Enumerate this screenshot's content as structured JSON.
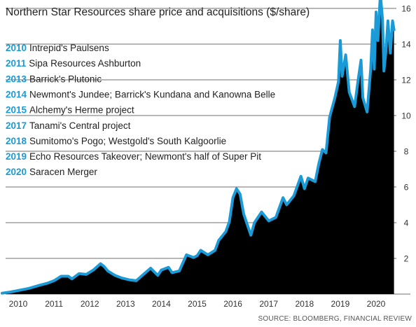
{
  "chart_data": {
    "type": "area",
    "title": "Northern Star Resources share price and acquisitions ($/share)",
    "source": "SOURCE: BLOOMBERG, FINANCIAL REVIEW",
    "xlabel": "",
    "ylabel": "",
    "x_range": [
      2009.55,
      2020.5
    ],
    "ylim": [
      0,
      17
    ],
    "y_ticks": [
      2,
      4,
      6,
      8,
      10,
      12,
      14,
      16
    ],
    "x_ticks": [
      2010,
      2011,
      2012,
      2013,
      2014,
      2015,
      2016,
      2017,
      2018,
      2019,
      2020
    ],
    "grid": true,
    "colors": {
      "line": "#1a9bd7",
      "fill": "#000000",
      "year": "#1a9bd7"
    },
    "series": [
      {
        "points": [
          [
            2009.55,
            0.05
          ],
          [
            2009.8,
            0.12
          ],
          [
            2010.0,
            0.2
          ],
          [
            2010.3,
            0.32
          ],
          [
            2010.6,
            0.5
          ],
          [
            2010.8,
            0.6
          ],
          [
            2011.0,
            0.75
          ],
          [
            2011.2,
            1.0
          ],
          [
            2011.4,
            1.0
          ],
          [
            2011.5,
            0.85
          ],
          [
            2011.7,
            1.15
          ],
          [
            2011.9,
            1.1
          ],
          [
            2012.1,
            1.35
          ],
          [
            2012.3,
            1.7
          ],
          [
            2012.4,
            1.55
          ],
          [
            2012.5,
            1.3
          ],
          [
            2012.7,
            1.05
          ],
          [
            2012.9,
            0.9
          ],
          [
            2013.1,
            0.8
          ],
          [
            2013.3,
            0.75
          ],
          [
            2013.5,
            1.1
          ],
          [
            2013.7,
            1.45
          ],
          [
            2013.9,
            1.05
          ],
          [
            2014.0,
            1.35
          ],
          [
            2014.2,
            1.5
          ],
          [
            2014.3,
            1.2
          ],
          [
            2014.5,
            1.3
          ],
          [
            2014.7,
            2.2
          ],
          [
            2014.9,
            2.05
          ],
          [
            2015.0,
            2.15
          ],
          [
            2015.1,
            2.45
          ],
          [
            2015.3,
            2.2
          ],
          [
            2015.5,
            2.45
          ],
          [
            2015.6,
            3.0
          ],
          [
            2015.8,
            3.5
          ],
          [
            2015.9,
            4.05
          ],
          [
            2016.0,
            5.4
          ],
          [
            2016.1,
            5.9
          ],
          [
            2016.2,
            5.6
          ],
          [
            2016.3,
            4.5
          ],
          [
            2016.4,
            3.9
          ],
          [
            2016.5,
            3.3
          ],
          [
            2016.6,
            4.0
          ],
          [
            2016.7,
            4.3
          ],
          [
            2016.8,
            4.6
          ],
          [
            2017.0,
            4.1
          ],
          [
            2017.2,
            4.3
          ],
          [
            2017.4,
            5.4
          ],
          [
            2017.5,
            5.0
          ],
          [
            2017.7,
            5.5
          ],
          [
            2017.9,
            6.6
          ],
          [
            2018.0,
            5.9
          ],
          [
            2018.1,
            6.5
          ],
          [
            2018.3,
            6.3
          ],
          [
            2018.4,
            7.3
          ],
          [
            2018.5,
            8.1
          ],
          [
            2018.6,
            7.9
          ],
          [
            2018.7,
            9.9
          ],
          [
            2018.85,
            11.0
          ],
          [
            2018.95,
            11.9
          ],
          [
            2019.0,
            14.2
          ],
          [
            2019.05,
            12.2
          ],
          [
            2019.15,
            13.4
          ],
          [
            2019.25,
            11.3
          ],
          [
            2019.4,
            10.5
          ],
          [
            2019.5,
            12.0
          ],
          [
            2019.58,
            13.1
          ],
          [
            2019.63,
            11.0
          ],
          [
            2019.75,
            10.2
          ],
          [
            2019.85,
            12.6
          ],
          [
            2019.9,
            14.8
          ],
          [
            2019.95,
            12.6
          ],
          [
            2020.0,
            15.8
          ],
          [
            2020.05,
            14.2
          ],
          [
            2020.12,
            16.8
          ],
          [
            2020.18,
            15.4
          ],
          [
            2020.22,
            12.5
          ],
          [
            2020.27,
            13.5
          ],
          [
            2020.33,
            15.3
          ],
          [
            2020.4,
            13.5
          ],
          [
            2020.46,
            15.3
          ],
          [
            2020.5,
            14.8
          ]
        ]
      }
    ],
    "annotations": [
      {
        "year": "2010",
        "text": "Intrepid's Paulsens"
      },
      {
        "year": "2011",
        "text": "Sipa Resources Ashburton"
      },
      {
        "year": "2013",
        "text": "Barrick's Plutonic"
      },
      {
        "year": "2014",
        "text": "Newmont's Jundee; Barrick's Kundana and Kanowna Belle"
      },
      {
        "year": "2015",
        "text": "Alchemy's Herme project"
      },
      {
        "year": "2017",
        "text": "Tanami's Central project"
      },
      {
        "year": "2018",
        "text": "Sumitomo's Pogo; Westgold's South Kalgoorlie"
      },
      {
        "year": "2019",
        "text": "Echo Resources Takeover; Newmont's half of Super Pit"
      },
      {
        "year": "2020",
        "text": "Saracen Merger"
      }
    ]
  }
}
